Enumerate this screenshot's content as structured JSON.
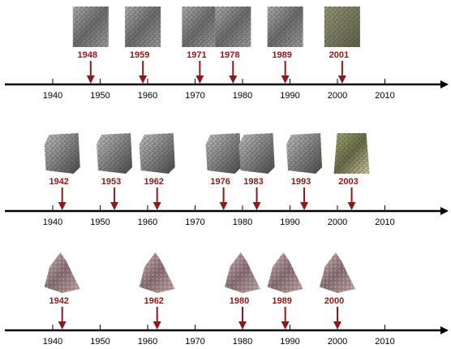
{
  "colors": {
    "axis": "#000000",
    "event": "#8b1a1a",
    "background": "#ffffff"
  },
  "axis_range": [
    1930,
    2020
  ],
  "tick_years": [
    1940,
    1950,
    1960,
    1970,
    1980,
    1990,
    2000,
    2010
  ],
  "tick_labels": [
    "1940",
    "1950",
    "1960",
    "1970",
    "1980",
    "1990",
    "2000",
    "2010"
  ],
  "rows": [
    {
      "image_style": "grayscale-texture",
      "events": [
        {
          "year": 1948,
          "label": "1948"
        },
        {
          "year": 1959,
          "label": "1959"
        },
        {
          "year": 1971,
          "label": "1971"
        },
        {
          "year": 1978,
          "label": "1978"
        },
        {
          "year": 1989,
          "label": "1989"
        },
        {
          "year": 2001,
          "label": "2001"
        }
      ]
    },
    {
      "image_style": "grayscale-mosaic",
      "events": [
        {
          "year": 1942,
          "label": "1942"
        },
        {
          "year": 1953,
          "label": "1953"
        },
        {
          "year": 1962,
          "label": "1962"
        },
        {
          "year": 1976,
          "label": "1976"
        },
        {
          "year": 1983,
          "label": "1983"
        },
        {
          "year": 1993,
          "label": "1993"
        },
        {
          "year": 2003,
          "label": "2003"
        }
      ]
    },
    {
      "image_style": "false-color-mountain",
      "events": [
        {
          "year": 1942,
          "label": "1942"
        },
        {
          "year": 1962,
          "label": "1962"
        },
        {
          "year": 1980,
          "label": "1980"
        },
        {
          "year": 1989,
          "label": "1989"
        },
        {
          "year": 2000,
          "label": "2000"
        }
      ]
    }
  ]
}
